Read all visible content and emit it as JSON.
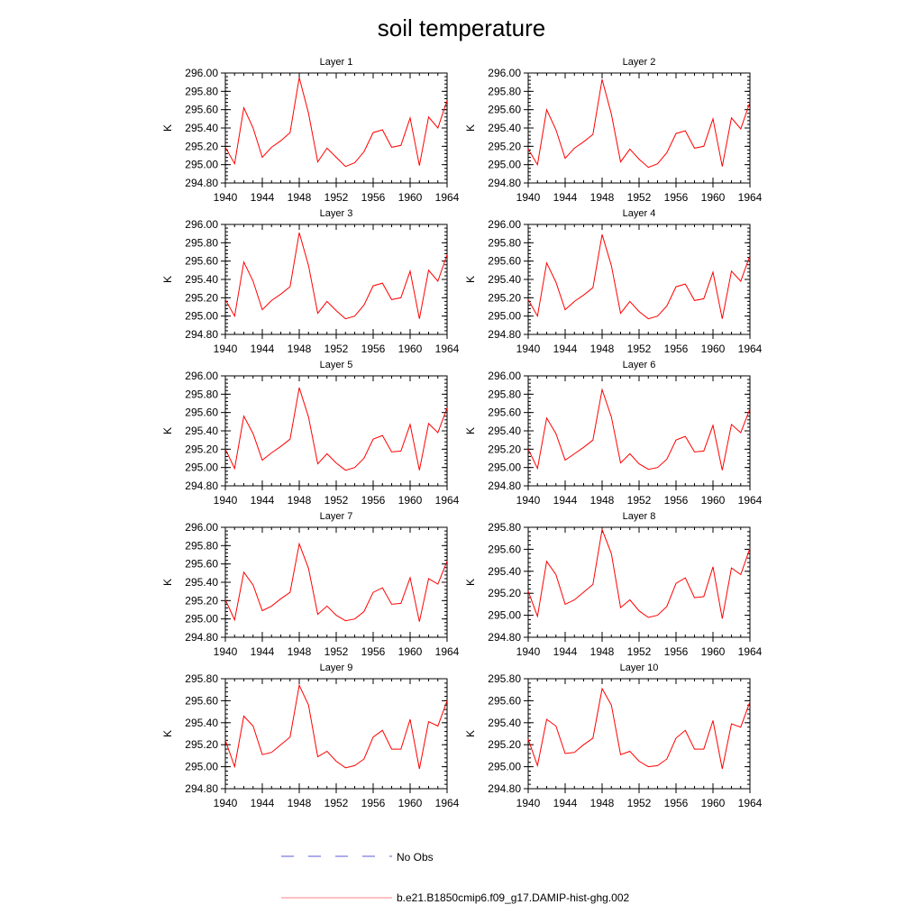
{
  "figure": {
    "title": "soil temperature"
  },
  "legend": {
    "entries": [
      {
        "label": "No Obs",
        "color": "#5a5adc",
        "dash": "dashed"
      },
      {
        "label": "b.e21.B1850cmip6.f09_g17.DAMIP-hist-ghg.002",
        "color": "#ff8080",
        "dash": "solid"
      }
    ]
  },
  "chart_data": [
    {
      "type": "line",
      "title": "Layer 1",
      "ylabel": "K",
      "ylim": [
        294.8,
        296.0
      ],
      "yticks": [
        "294.80",
        "295.00",
        "295.20",
        "295.40",
        "295.60",
        "295.80",
        "296.00"
      ],
      "xticks": [
        "1940",
        "1944",
        "1948",
        "1952",
        "1956",
        "1960",
        "1964"
      ],
      "xlim": [
        1940,
        1964
      ],
      "x": [
        1940,
        1941,
        1942,
        1943,
        1944,
        1945,
        1946,
        1947,
        1948,
        1949,
        1950,
        1951,
        1952,
        1953,
        1954,
        1955,
        1956,
        1957,
        1958,
        1959,
        1960,
        1961,
        1962,
        1963,
        1964
      ],
      "series": [
        {
          "name": "b.e21.B1850cmip6.f09_g17.DAMIP-hist-ghg.002",
          "values": [
            295.19,
            295.01,
            295.62,
            295.4,
            295.08,
            295.19,
            295.26,
            295.35,
            295.95,
            295.56,
            295.03,
            295.18,
            295.08,
            294.98,
            295.02,
            295.14,
            295.35,
            295.38,
            295.19,
            295.21,
            295.51,
            294.99,
            295.52,
            295.4,
            295.7
          ]
        }
      ]
    },
    {
      "type": "line",
      "title": "Layer 2",
      "ylabel": "K",
      "ylim": [
        294.8,
        296.0
      ],
      "yticks": [
        "294.80",
        "295.00",
        "295.20",
        "295.40",
        "295.60",
        "295.80",
        "296.00"
      ],
      "xticks": [
        "1940",
        "1944",
        "1948",
        "1952",
        "1956",
        "1960",
        "1964"
      ],
      "xlim": [
        1940,
        1964
      ],
      "x": [
        1940,
        1941,
        1942,
        1943,
        1944,
        1945,
        1946,
        1947,
        1948,
        1949,
        1950,
        1951,
        1952,
        1953,
        1954,
        1955,
        1956,
        1957,
        1958,
        1959,
        1960,
        1961,
        1962,
        1963,
        1964
      ],
      "series": [
        {
          "name": "b.e21.B1850cmip6.f09_g17.DAMIP-hist-ghg.002",
          "values": [
            295.17,
            295.0,
            295.6,
            295.38,
            295.07,
            295.18,
            295.25,
            295.33,
            295.93,
            295.55,
            295.03,
            295.17,
            295.06,
            294.97,
            295.01,
            295.13,
            295.34,
            295.37,
            295.18,
            295.2,
            295.5,
            294.98,
            295.51,
            295.39,
            295.68
          ]
        }
      ]
    },
    {
      "type": "line",
      "title": "Layer 3",
      "ylabel": "K",
      "ylim": [
        294.8,
        296.0
      ],
      "yticks": [
        "294.80",
        "295.00",
        "295.20",
        "295.40",
        "295.60",
        "295.80",
        "296.00"
      ],
      "xticks": [
        "1940",
        "1944",
        "1948",
        "1952",
        "1956",
        "1960",
        "1964"
      ],
      "xlim": [
        1940,
        1964
      ],
      "x": [
        1940,
        1941,
        1942,
        1943,
        1944,
        1945,
        1946,
        1947,
        1948,
        1949,
        1950,
        1951,
        1952,
        1953,
        1954,
        1955,
        1956,
        1957,
        1958,
        1959,
        1960,
        1961,
        1962,
        1963,
        1964
      ],
      "series": [
        {
          "name": "b.e21.B1850cmip6.f09_g17.DAMIP-hist-ghg.002",
          "values": [
            295.18,
            295.0,
            295.59,
            295.38,
            295.07,
            295.17,
            295.24,
            295.32,
            295.91,
            295.55,
            295.03,
            295.16,
            295.06,
            294.97,
            295.0,
            295.12,
            295.33,
            295.36,
            295.18,
            295.2,
            295.49,
            294.97,
            295.5,
            295.38,
            295.67
          ]
        }
      ]
    },
    {
      "type": "line",
      "title": "Layer 4",
      "ylabel": "K",
      "ylim": [
        294.8,
        296.0
      ],
      "yticks": [
        "294.80",
        "295.00",
        "295.20",
        "295.40",
        "295.60",
        "295.80",
        "296.00"
      ],
      "xticks": [
        "1940",
        "1944",
        "1948",
        "1952",
        "1956",
        "1960",
        "1964"
      ],
      "xlim": [
        1940,
        1964
      ],
      "x": [
        1940,
        1941,
        1942,
        1943,
        1944,
        1945,
        1946,
        1947,
        1948,
        1949,
        1950,
        1951,
        1952,
        1953,
        1954,
        1955,
        1956,
        1957,
        1958,
        1959,
        1960,
        1961,
        1962,
        1963,
        1964
      ],
      "series": [
        {
          "name": "b.e21.B1850cmip6.f09_g17.DAMIP-hist-ghg.002",
          "values": [
            295.18,
            295.0,
            295.58,
            295.37,
            295.07,
            295.16,
            295.23,
            295.31,
            295.89,
            295.55,
            295.03,
            295.16,
            295.05,
            294.97,
            295.0,
            295.11,
            295.32,
            295.35,
            295.17,
            295.19,
            295.48,
            294.97,
            295.49,
            295.38,
            295.66
          ]
        }
      ]
    },
    {
      "type": "line",
      "title": "Layer 5",
      "ylabel": "K",
      "ylim": [
        294.8,
        296.0
      ],
      "yticks": [
        "294.80",
        "295.00",
        "295.20",
        "295.40",
        "295.60",
        "295.80",
        "296.00"
      ],
      "xticks": [
        "1940",
        "1944",
        "1948",
        "1952",
        "1956",
        "1960",
        "1964"
      ],
      "xlim": [
        1940,
        1964
      ],
      "x": [
        1940,
        1941,
        1942,
        1943,
        1944,
        1945,
        1946,
        1947,
        1948,
        1949,
        1950,
        1951,
        1952,
        1953,
        1954,
        1955,
        1956,
        1957,
        1958,
        1959,
        1960,
        1961,
        1962,
        1963,
        1964
      ],
      "series": [
        {
          "name": "b.e21.B1850cmip6.f09_g17.DAMIP-hist-ghg.002",
          "values": [
            295.2,
            294.99,
            295.56,
            295.37,
            295.08,
            295.16,
            295.23,
            295.31,
            295.87,
            295.55,
            295.04,
            295.15,
            295.05,
            294.97,
            295.0,
            295.1,
            295.31,
            295.35,
            295.17,
            295.18,
            295.47,
            294.97,
            295.48,
            295.38,
            295.65
          ]
        }
      ]
    },
    {
      "type": "line",
      "title": "Layer 6",
      "ylabel": "K",
      "ylim": [
        294.8,
        296.0
      ],
      "yticks": [
        "294.80",
        "295.00",
        "295.20",
        "295.40",
        "295.60",
        "295.80",
        "296.00"
      ],
      "xticks": [
        "1940",
        "1944",
        "1948",
        "1952",
        "1956",
        "1960",
        "1964"
      ],
      "xlim": [
        1940,
        1964
      ],
      "x": [
        1940,
        1941,
        1942,
        1943,
        1944,
        1945,
        1946,
        1947,
        1948,
        1949,
        1950,
        1951,
        1952,
        1953,
        1954,
        1955,
        1956,
        1957,
        1958,
        1959,
        1960,
        1961,
        1962,
        1963,
        1964
      ],
      "series": [
        {
          "name": "b.e21.B1850cmip6.f09_g17.DAMIP-hist-ghg.002",
          "values": [
            295.2,
            294.99,
            295.54,
            295.37,
            295.08,
            295.15,
            295.22,
            295.3,
            295.85,
            295.55,
            295.05,
            295.15,
            295.04,
            294.98,
            295.0,
            295.09,
            295.3,
            295.34,
            295.17,
            295.18,
            295.46,
            294.97,
            295.47,
            295.38,
            295.64
          ]
        }
      ]
    },
    {
      "type": "line",
      "title": "Layer 7",
      "ylabel": "K",
      "ylim": [
        294.8,
        296.0
      ],
      "yticks": [
        "294.80",
        "295.00",
        "295.20",
        "295.40",
        "295.60",
        "295.80",
        "296.00"
      ],
      "xticks": [
        "1940",
        "1944",
        "1948",
        "1952",
        "1956",
        "1960",
        "1964"
      ],
      "xlim": [
        1940,
        1964
      ],
      "x": [
        1940,
        1941,
        1942,
        1943,
        1944,
        1945,
        1946,
        1947,
        1948,
        1949,
        1950,
        1951,
        1952,
        1953,
        1954,
        1955,
        1956,
        1957,
        1958,
        1959,
        1960,
        1961,
        1962,
        1963,
        1964
      ],
      "series": [
        {
          "name": "b.e21.B1850cmip6.f09_g17.DAMIP-hist-ghg.002",
          "values": [
            295.21,
            294.99,
            295.51,
            295.37,
            295.09,
            295.14,
            295.22,
            295.29,
            295.82,
            295.55,
            295.05,
            295.14,
            295.04,
            294.98,
            295.0,
            295.08,
            295.29,
            295.34,
            295.16,
            295.17,
            295.45,
            294.97,
            295.44,
            295.38,
            295.63
          ]
        }
      ]
    },
    {
      "type": "line",
      "title": "Layer 8",
      "ylabel": "K",
      "ylim": [
        294.8,
        295.8
      ],
      "yticks": [
        "294.80",
        "295.00",
        "295.20",
        "295.40",
        "295.60",
        "295.80"
      ],
      "xticks": [
        "1940",
        "1944",
        "1948",
        "1952",
        "1956",
        "1960",
        "1964"
      ],
      "xlim": [
        1940,
        1964
      ],
      "x": [
        1940,
        1941,
        1942,
        1943,
        1944,
        1945,
        1946,
        1947,
        1948,
        1949,
        1950,
        1951,
        1952,
        1953,
        1954,
        1955,
        1956,
        1957,
        1958,
        1959,
        1960,
        1961,
        1962,
        1963,
        1964
      ],
      "series": [
        {
          "name": "b.e21.B1850cmip6.f09_g17.DAMIP-hist-ghg.002",
          "values": [
            295.22,
            294.99,
            295.49,
            295.37,
            295.1,
            295.14,
            295.21,
            295.28,
            295.78,
            295.56,
            295.07,
            295.14,
            295.04,
            294.98,
            295.0,
            295.08,
            295.29,
            295.34,
            295.16,
            295.17,
            295.44,
            294.97,
            295.43,
            295.37,
            295.61
          ]
        }
      ]
    },
    {
      "type": "line",
      "title": "Layer 9",
      "ylabel": "K",
      "ylim": [
        294.8,
        295.8
      ],
      "yticks": [
        "294.80",
        "295.00",
        "295.20",
        "295.40",
        "295.60",
        "295.80"
      ],
      "xticks": [
        "1940",
        "1944",
        "1948",
        "1952",
        "1956",
        "1960",
        "1964"
      ],
      "xlim": [
        1940,
        1964
      ],
      "x": [
        1940,
        1941,
        1942,
        1943,
        1944,
        1945,
        1946,
        1947,
        1948,
        1949,
        1950,
        1951,
        1952,
        1953,
        1954,
        1955,
        1956,
        1957,
        1958,
        1959,
        1960,
        1961,
        1962,
        1963,
        1964
      ],
      "series": [
        {
          "name": "b.e21.B1850cmip6.f09_g17.DAMIP-hist-ghg.002",
          "values": [
            295.24,
            295.0,
            295.46,
            295.37,
            295.11,
            295.13,
            295.2,
            295.27,
            295.74,
            295.56,
            295.09,
            295.14,
            295.05,
            294.99,
            295.01,
            295.07,
            295.27,
            295.33,
            295.16,
            295.16,
            295.43,
            294.98,
            295.41,
            295.37,
            295.6
          ]
        }
      ]
    },
    {
      "type": "line",
      "title": "Layer 10",
      "ylabel": "K",
      "ylim": [
        294.8,
        295.8
      ],
      "yticks": [
        "294.80",
        "295.00",
        "295.20",
        "295.40",
        "295.60",
        "295.80"
      ],
      "xticks": [
        "1940",
        "1944",
        "1948",
        "1952",
        "1956",
        "1960",
        "1964"
      ],
      "xlim": [
        1940,
        1964
      ],
      "x": [
        1940,
        1941,
        1942,
        1943,
        1944,
        1945,
        1946,
        1947,
        1948,
        1949,
        1950,
        1951,
        1952,
        1953,
        1954,
        1955,
        1956,
        1957,
        1958,
        1959,
        1960,
        1961,
        1962,
        1963,
        1964
      ],
      "series": [
        {
          "name": "b.e21.B1850cmip6.f09_g17.DAMIP-hist-ghg.002",
          "values": [
            295.25,
            295.01,
            295.43,
            295.37,
            295.12,
            295.13,
            295.2,
            295.26,
            295.71,
            295.56,
            295.11,
            295.14,
            295.05,
            295.0,
            295.01,
            295.07,
            295.26,
            295.33,
            295.16,
            295.16,
            295.42,
            294.98,
            295.39,
            295.36,
            295.59
          ]
        }
      ]
    }
  ]
}
